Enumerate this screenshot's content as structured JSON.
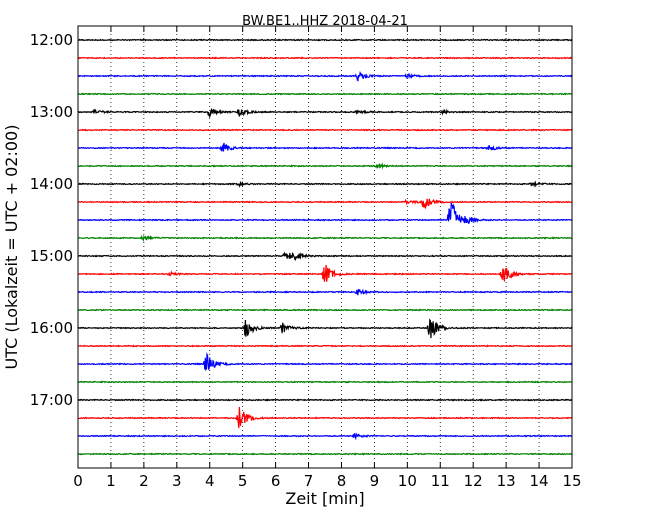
{
  "chart_data": {
    "type": "line",
    "title": "BW.BE1..HHZ 2018-04-21",
    "xlabel": "Zeit  [min]",
    "ylabel": "UTC (Lokalzeit = UTC + 02:00)",
    "xlim": [
      0,
      15
    ],
    "x_ticks": [
      0,
      1,
      2,
      3,
      4,
      5,
      6,
      7,
      8,
      9,
      10,
      11,
      12,
      13,
      14,
      15
    ],
    "y_tick_labels": [
      "12:00",
      "13:00",
      "14:00",
      "15:00",
      "16:00",
      "17:00"
    ],
    "grid": "vertical dotted",
    "line_colors": [
      "#000000",
      "#ff0000",
      "#0000ff",
      "#008000"
    ],
    "traces": [
      {
        "start": "12:00",
        "events": []
      },
      {
        "start": "12:15",
        "events": []
      },
      {
        "start": "12:30",
        "events": [
          {
            "t": 8.5,
            "amp": 0.6
          },
          {
            "t": 10.0,
            "amp": 0.25
          }
        ]
      },
      {
        "start": "12:45",
        "events": []
      },
      {
        "start": "13:00",
        "events": [
          {
            "t": 0.5,
            "amp": 0.3
          },
          {
            "t": 4.0,
            "amp": 0.55
          },
          {
            "t": 4.9,
            "amp": 0.5
          },
          {
            "t": 8.5,
            "amp": 0.25
          },
          {
            "t": 11.1,
            "amp": 0.2
          }
        ]
      },
      {
        "start": "13:15",
        "events": []
      },
      {
        "start": "13:30",
        "events": [
          {
            "t": 4.4,
            "amp": 0.7
          },
          {
            "t": 12.5,
            "amp": 0.35
          }
        ]
      },
      {
        "start": "13:45",
        "events": [
          {
            "t": 9.1,
            "amp": 0.3
          }
        ]
      },
      {
        "start": "14:00",
        "events": [
          {
            "t": 4.9,
            "amp": 0.2
          },
          {
            "t": 13.8,
            "amp": 0.3
          }
        ]
      },
      {
        "start": "14:15",
        "events": [
          {
            "t": 10.0,
            "amp": 0.3
          },
          {
            "t": 10.5,
            "amp": 1.0
          }
        ]
      },
      {
        "start": "14:30",
        "events": [
          {
            "t": 11.3,
            "amp": 3.5
          },
          {
            "t": 11.7,
            "amp": 0.5
          }
        ]
      },
      {
        "start": "14:45",
        "events": [
          {
            "t": 2.0,
            "amp": 0.3
          }
        ]
      },
      {
        "start": "15:00",
        "events": [
          {
            "t": 6.3,
            "amp": 0.7
          },
          {
            "t": 6.6,
            "amp": 0.4
          }
        ]
      },
      {
        "start": "15:15",
        "events": [
          {
            "t": 7.5,
            "amp": 1.3
          },
          {
            "t": 12.9,
            "amp": 1.3
          },
          {
            "t": 2.8,
            "amp": 0.2
          }
        ]
      },
      {
        "start": "15:30",
        "events": [
          {
            "t": 8.5,
            "amp": 0.4
          }
        ]
      },
      {
        "start": "15:45",
        "events": []
      },
      {
        "start": "16:00",
        "events": [
          {
            "t": 5.1,
            "amp": 1.3
          },
          {
            "t": 6.2,
            "amp": 0.7
          },
          {
            "t": 10.7,
            "amp": 1.5
          }
        ]
      },
      {
        "start": "16:15",
        "events": []
      },
      {
        "start": "16:30",
        "events": [
          {
            "t": 3.9,
            "amp": 1.4
          }
        ]
      },
      {
        "start": "16:45",
        "events": []
      },
      {
        "start": "17:00",
        "events": []
      },
      {
        "start": "17:15",
        "events": [
          {
            "t": 4.9,
            "amp": 1.5
          }
        ]
      },
      {
        "start": "17:30",
        "events": [
          {
            "t": 8.4,
            "amp": 0.3
          }
        ]
      },
      {
        "start": "17:45",
        "events": []
      }
    ]
  }
}
